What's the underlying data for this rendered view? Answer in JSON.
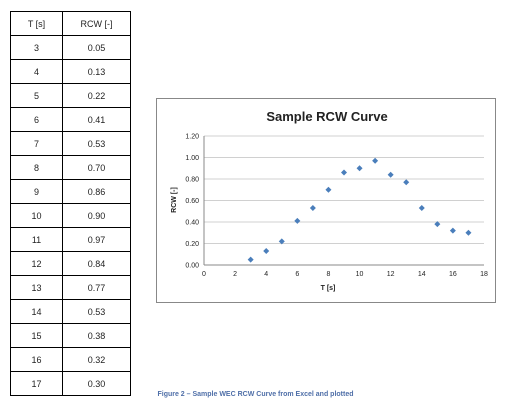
{
  "table": {
    "headers": [
      "T [s]",
      "RCW [-]"
    ],
    "rows": [
      [
        "3",
        "0.05"
      ],
      [
        "4",
        "0.13"
      ],
      [
        "5",
        "0.22"
      ],
      [
        "6",
        "0.41"
      ],
      [
        "7",
        "0.53"
      ],
      [
        "8",
        "0.70"
      ],
      [
        "9",
        "0.86"
      ],
      [
        "10",
        "0.90"
      ],
      [
        "11",
        "0.97"
      ],
      [
        "12",
        "0.84"
      ],
      [
        "13",
        "0.77"
      ],
      [
        "14",
        "0.53"
      ],
      [
        "15",
        "0.38"
      ],
      [
        "16",
        "0.32"
      ],
      [
        "17",
        "0.30"
      ]
    ]
  },
  "chart_data": {
    "type": "scatter",
    "title": "Sample RCW Curve",
    "xlabel": "T [s]",
    "ylabel": "RCW [-]",
    "xlim": [
      0,
      18
    ],
    "ylim": [
      0,
      1.2
    ],
    "xticks": [
      0,
      2,
      4,
      6,
      8,
      10,
      12,
      14,
      16,
      18
    ],
    "yticks": [
      "0.00",
      "0.20",
      "0.40",
      "0.60",
      "0.80",
      "1.00",
      "1.20"
    ],
    "grid": "horizontal",
    "marker_color": "#4a7ebb",
    "x": [
      3,
      4,
      5,
      6,
      7,
      8,
      9,
      10,
      11,
      12,
      13,
      14,
      15,
      16,
      17
    ],
    "y": [
      0.05,
      0.13,
      0.22,
      0.41,
      0.53,
      0.7,
      0.86,
      0.9,
      0.97,
      0.84,
      0.77,
      0.53,
      0.38,
      0.32,
      0.3
    ]
  },
  "caption": "Figure 2 – Sample WEC RCW Curve from Excel and plotted"
}
